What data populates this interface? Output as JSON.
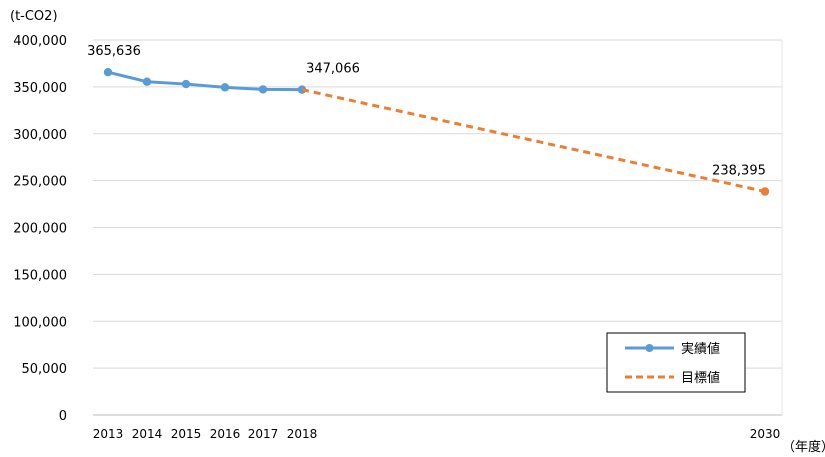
{
  "chart_data": {
    "type": "line",
    "y_unit_label": "(t-CO2)",
    "x_unit_label": "（年度）",
    "ylim": [
      0,
      400000
    ],
    "y_ticks": [
      {
        "value": 0,
        "label": "0"
      },
      {
        "value": 50000,
        "label": "50,000"
      },
      {
        "value": 100000,
        "label": "100,000"
      },
      {
        "value": 150000,
        "label": "150,000"
      },
      {
        "value": 200000,
        "label": "200,000"
      },
      {
        "value": 250000,
        "label": "250,000"
      },
      {
        "value": 300000,
        "label": "300,000"
      },
      {
        "value": 350000,
        "label": "350,000"
      },
      {
        "value": 400000,
        "label": "400,000"
      }
    ],
    "x_ticks": [
      "2013",
      "2014",
      "2015",
      "2016",
      "2017",
      "2018",
      "2030"
    ],
    "grid": true,
    "legend_position": "bottom-right",
    "series": [
      {
        "name": "実績値",
        "style": "solid",
        "color": "#5b9bd5",
        "points": [
          {
            "x": 2013,
            "y": 365636
          },
          {
            "x": 2014,
            "y": 355500
          },
          {
            "x": 2015,
            "y": 353000
          },
          {
            "x": 2016,
            "y": 349500
          },
          {
            "x": 2017,
            "y": 347300
          },
          {
            "x": 2018,
            "y": 347066
          }
        ]
      },
      {
        "name": "目標値",
        "style": "dashed",
        "color": "#ed7d31",
        "points": [
          {
            "x": 2018,
            "y": 347066
          },
          {
            "x": 2030,
            "y": 238395
          }
        ]
      }
    ],
    "data_labels": [
      {
        "x": 2013,
        "y": 365636,
        "text": "365,636"
      },
      {
        "x": 2018,
        "y": 347066,
        "text": "347,066"
      },
      {
        "x": 2030,
        "y": 238395,
        "text": "238,395"
      }
    ]
  }
}
